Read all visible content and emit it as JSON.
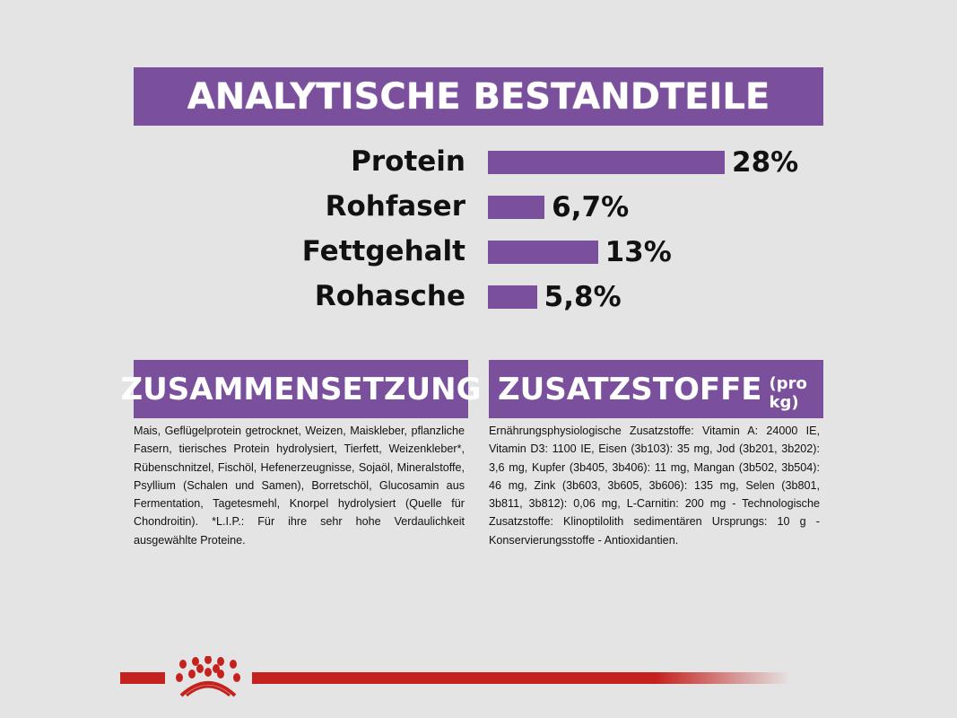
{
  "title": "ANALYTISCHE BESTANDTEILE",
  "colors": {
    "brand_purple": "#7a4f9c",
    "logo_red": "#c4221f",
    "background": "#e4e4e4"
  },
  "chart_data": {
    "type": "bar",
    "orientation": "horizontal",
    "categories": [
      "Protein",
      "Rohfaser",
      "Fettgehalt",
      "Rohasche"
    ],
    "values": [
      28,
      6.7,
      13,
      5.8
    ],
    "data_labels": [
      "28%",
      "6,7%",
      "13%",
      "5,8%"
    ]
  },
  "composition": {
    "heading": "ZUSAMMENSETZUNG",
    "text": "Mais, Geflügelprotein getrocknet, Weizen, Maiskleber, pflanzliche Fasern, tierisches Protein hydrolysiert, Tierfett, Weizenkleber*, Rübenschnitzel, Fischöl, Hefenerzeugnisse, Sojaöl, Mineralstoffe, Psyllium (Schalen und Samen), Borretschöl, Glucosamin aus Fermentation, Tagetesmehl, Knorpel hydrolysiert (Quelle für Chondroitin). *L.I.P.: Für ihre sehr hohe Verdaulichkeit ausgewählte Proteine."
  },
  "additives": {
    "heading": "ZUSATZSTOFFE",
    "heading_suffix": "(pro kg)",
    "text": "Ernährungsphysiologische Zusatzstoffe: Vitamin A: 24000 IE, Vitamin D3: 1100 IE, Eisen (3b103): 35 mg, Jod (3b201, 3b202): 3,6 mg, Kupfer (3b405, 3b406): 11 mg, Mangan (3b502, 3b504): 46 mg, Zink (3b603, 3b605, 3b606): 135 mg, Selen (3b801, 3b811, 3b812): 0,06 mg, L-Carnitin: 200 mg - Technologische Zusatzstoffe: Klinoptilolith sedimentären Ursprungs: 10 g - Konservierungsstoffe - Antioxidantien."
  },
  "footer": {
    "logo_icon": "royal-canin-crown-icon"
  }
}
